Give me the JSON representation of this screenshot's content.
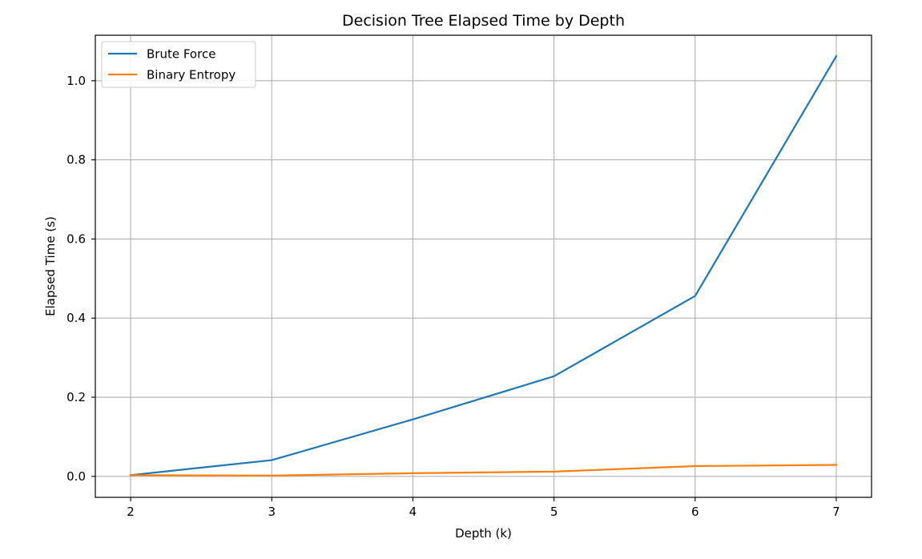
{
  "chart_data": {
    "type": "line",
    "title": "Decision Tree Elapsed Time by Depth",
    "xlabel": "Depth (k)",
    "ylabel": "Elapsed Time (s)",
    "x": [
      2,
      3,
      4,
      5,
      6,
      7
    ],
    "xlim": [
      1.75,
      7.25
    ],
    "ylim": [
      -0.053,
      1.115
    ],
    "xticks": [
      "2",
      "3",
      "4",
      "5",
      "6",
      "7"
    ],
    "yticks": [
      "0.0",
      "0.2",
      "0.4",
      "0.6",
      "0.8",
      "1.0"
    ],
    "grid": true,
    "legend_position": "top-left",
    "series": [
      {
        "name": "Brute Force",
        "color": "#1f77b4",
        "values": [
          0.003,
          0.041,
          0.144,
          0.253,
          0.456,
          1.062
        ]
      },
      {
        "name": "Binary Entropy",
        "color": "#ff7f0e",
        "values": [
          0.003,
          0.002,
          0.008,
          0.012,
          0.026,
          0.029
        ]
      }
    ]
  }
}
